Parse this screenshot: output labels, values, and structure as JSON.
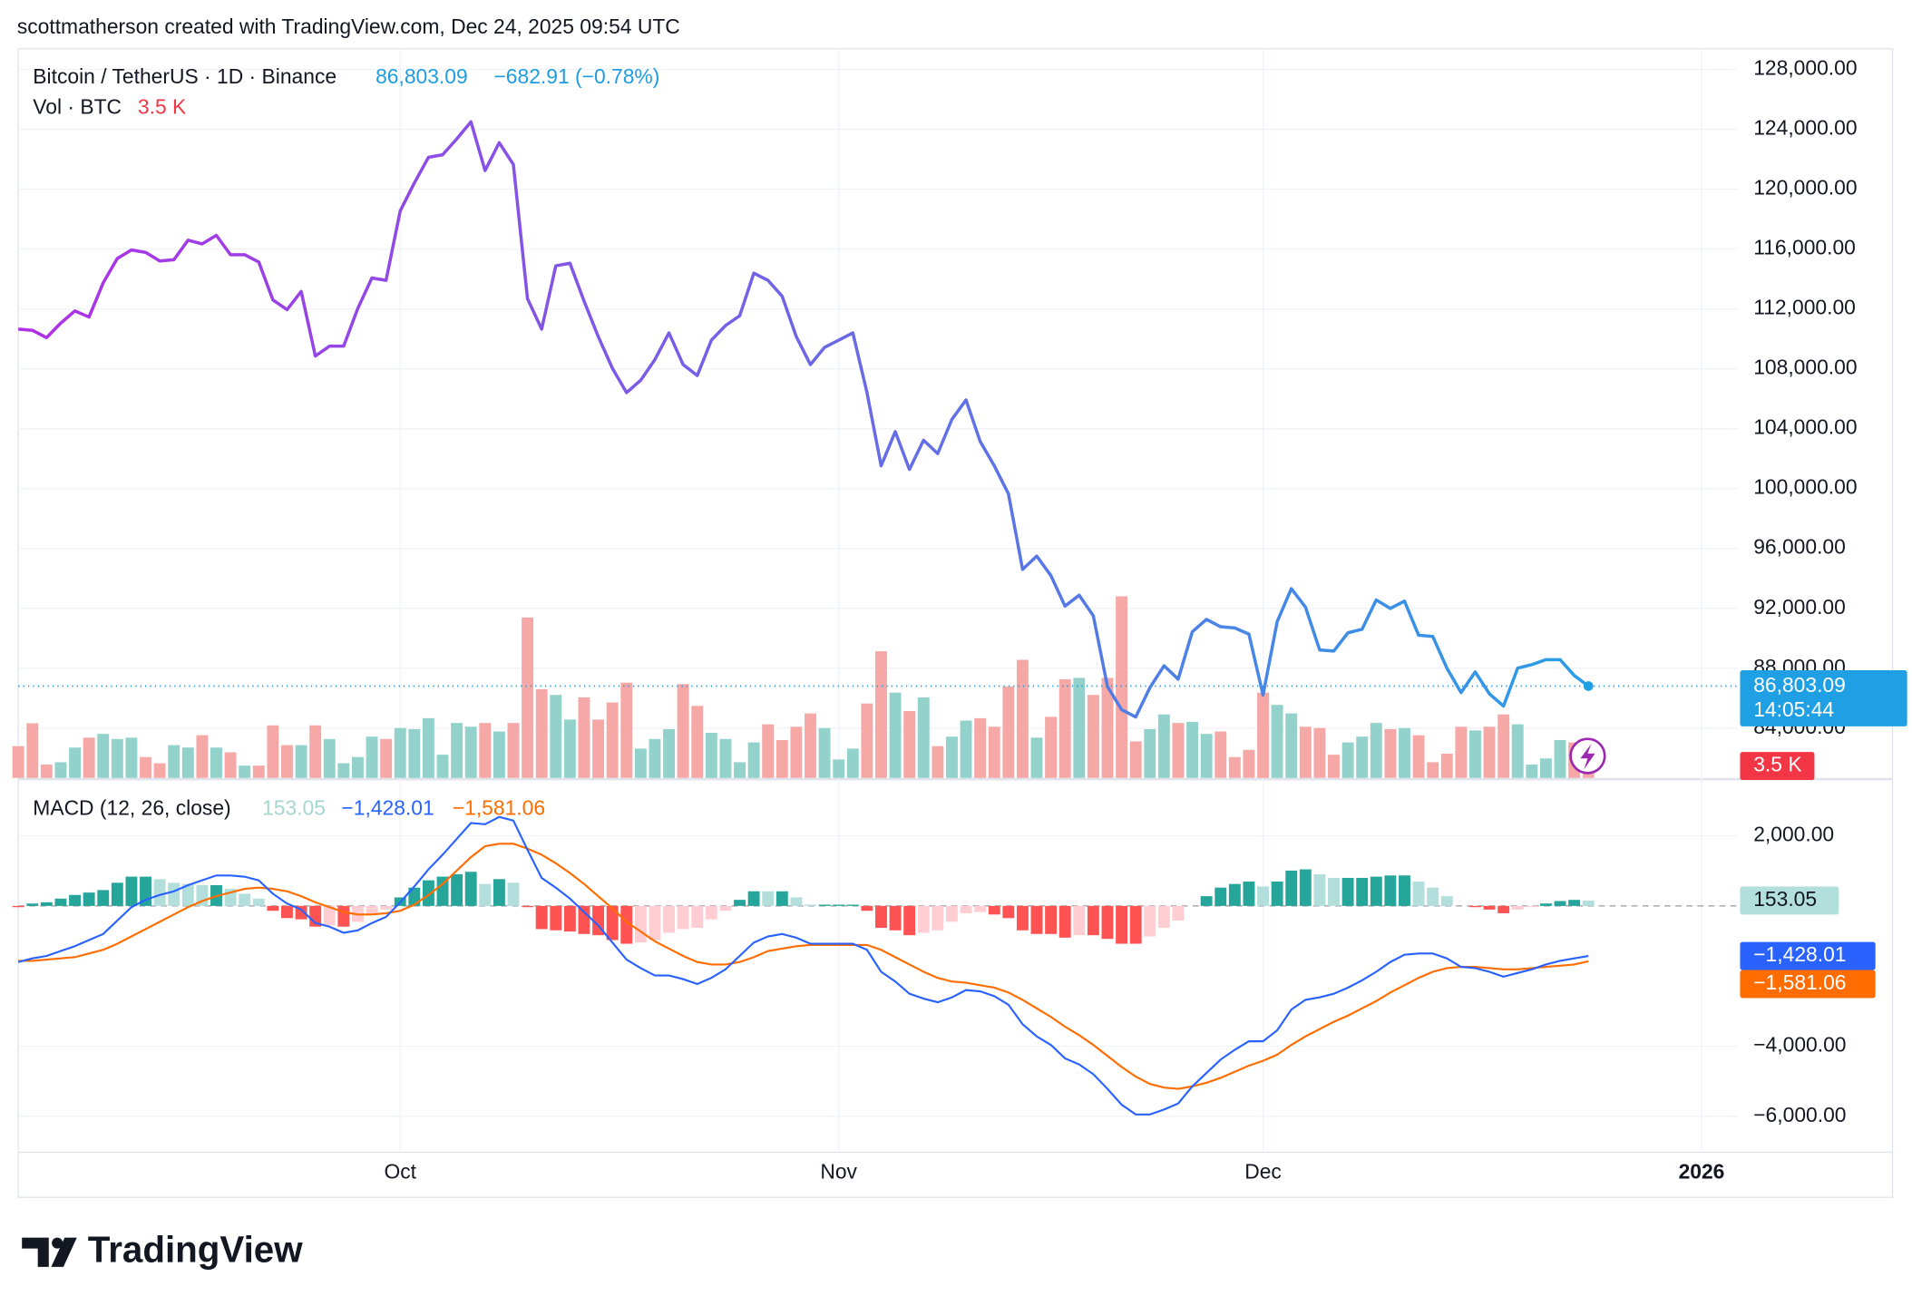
{
  "header": {
    "attribution": "scottmatherson created with TradingView.com, Dec 24, 2025 09:54 UTC",
    "logo": "TradingView"
  },
  "chart_data": [
    {
      "type": "bar",
      "title": "Vol · BTC",
      "current_label": "3.5 K",
      "up_color": "#92d2cb",
      "down_color": "#f5a8a6",
      "ylim": [
        0,
        213.6
      ],
      "values": [
        9.3,
        16,
        3.9,
        4.6,
        8.9,
        11.8,
        12.9,
        11.4,
        11.8,
        6.1,
        4.3,
        9.6,
        8.9,
        12.5,
        8.9,
        7.5,
        3.6,
        3.6,
        15.4,
        9.6,
        9.6,
        15.4,
        11.4,
        4.3,
        6.1,
        12.1,
        11.4,
        14.6,
        14.3,
        17.5,
        6.8,
        16.1,
        15,
        16.1,
        13.6,
        16.1,
        47,
        26,
        24.3,
        17.1,
        23.6,
        17.1,
        22.1,
        27.9,
        8.6,
        11.4,
        14.3,
        27.5,
        21.1,
        13.2,
        11.4,
        4.6,
        10.4,
        15.7,
        11.1,
        15,
        18.9,
        14.6,
        5.4,
        8.6,
        21.8,
        37.1,
        25,
        19.6,
        23.6,
        9.3,
        12.1,
        16.8,
        17.5,
        15,
        26.8,
        34.6,
        11.8,
        17.9,
        28.9,
        29.3,
        24.3,
        29.3,
        53.2,
        10.7,
        14.3,
        18.6,
        16.1,
        16.4,
        12.9,
        13.6,
        6.1,
        8.2,
        25,
        21.4,
        18.9,
        15,
        14.6,
        6.8,
        10.4,
        12.1,
        16.1,
        14.3,
        14.6,
        12.5,
        4.6,
        7.1,
        15,
        13.9,
        15,
        18.6,
        15.7,
        3.9,
        5.7,
        11.1,
        10.4,
        3.5
      ]
    },
    {
      "type": "line",
      "title": "Bitcoin / TetherUS · 1D · Binance",
      "last_label": "86,803.09",
      "change_label": "−682.91 (−0.78%)",
      "countdown": "14:05:44",
      "line_colors": [
        "#b02fe6",
        "#2a9de6"
      ],
      "badge_color": "#1f9fe4",
      "grid": true,
      "xlim": [
        0,
        121.55
      ],
      "xticks": [
        {
          "value": 27,
          "label": "Oct"
        },
        {
          "value": 58,
          "label": "Nov"
        },
        {
          "value": 88,
          "label": "Dec"
        },
        {
          "value": 119,
          "label": "2026"
        }
      ],
      "ylim": [
        80670,
        129380
      ],
      "yticks": [
        {
          "value": 128000,
          "label": "128,000.00"
        },
        {
          "value": 124000,
          "label": "124,000.00"
        },
        {
          "value": 120000,
          "label": "120,000.00"
        },
        {
          "value": 116000,
          "label": "116,000.00"
        },
        {
          "value": 112000,
          "label": "112,000.00"
        },
        {
          "value": 108000,
          "label": "108,000.00"
        },
        {
          "value": 104000,
          "label": "104,000.00"
        },
        {
          "value": 100000,
          "label": "100,000.00"
        },
        {
          "value": 96000,
          "label": "96,000.00"
        },
        {
          "value": 92000,
          "label": "92,000.00"
        },
        {
          "value": 88000,
          "label": "88,000.00"
        },
        {
          "value": 84000,
          "label": "84,000.00"
        }
      ],
      "values": [
        110650,
        110570,
        110080,
        111050,
        111870,
        111460,
        113740,
        115370,
        115940,
        115780,
        115210,
        115290,
        116590,
        116350,
        116920,
        115620,
        115620,
        115130,
        112600,
        111950,
        113170,
        108850,
        109510,
        109510,
        112030,
        114070,
        113910,
        118550,
        120420,
        122130,
        122300,
        123360,
        124500,
        121240,
        123110,
        121650,
        112680,
        110650,
        114880,
        115050,
        112520,
        110160,
        108040,
        106410,
        107230,
        108610,
        110400,
        108280,
        107550,
        109910,
        110890,
        111540,
        114390,
        113910,
        112850,
        110160,
        108280,
        109430,
        109910,
        110400,
        106410,
        101520,
        103800,
        101280,
        103230,
        102340,
        104620,
        105920,
        103150,
        101520,
        99650,
        94600,
        95490,
        94190,
        92150,
        92880,
        91500,
        86780,
        85230,
        84740,
        86700,
        88160,
        87270,
        90440,
        91260,
        90770,
        90690,
        90280,
        86210,
        91110,
        93310,
        92080,
        89220,
        89140,
        90360,
        90600,
        92560,
        91990,
        92480,
        90200,
        90120,
        88000,
        86370,
        87750,
        86290,
        85470,
        88000,
        88240,
        88570,
        88570,
        87510,
        86803.09
      ]
    },
    {
      "type": "macd",
      "title": "MACD (12, 26, close)",
      "grid": true,
      "ylim": [
        -7026,
        3582
      ],
      "yticks": [
        {
          "value": 2000,
          "label": "2,000.00"
        },
        {
          "value": -4000,
          "label": "−4,000.00"
        },
        {
          "value": -6000,
          "label": "−6,000.00"
        }
      ],
      "histogram": {
        "label": "153.05",
        "colors": {
          "pos_up": "#26a69a",
          "pos_down": "#b2dfdb",
          "neg_down": "#ff5252",
          "neg_up": "#ffcdd2"
        },
        "values": [
          -35,
          69,
          104,
          209,
          313,
          382,
          452,
          661,
          835,
          835,
          765,
          660,
          626,
          591,
          592,
          487,
          348,
          208,
          -139,
          -347,
          -382,
          -591,
          -556,
          -591,
          -453,
          -244,
          -104,
          243,
          521,
          730,
          835,
          904,
          974,
          626,
          765,
          661,
          -35,
          -661,
          -695,
          -730,
          -800,
          -835,
          -973,
          -1078,
          -1044,
          -973,
          -765,
          -661,
          -626,
          -383,
          -140,
          174,
          418,
          417,
          417,
          244,
          35,
          35,
          35,
          35,
          -139,
          -626,
          -696,
          -835,
          -765,
          -696,
          -452,
          -209,
          -174,
          -244,
          -348,
          -696,
          -799,
          -800,
          -905,
          -834,
          -835,
          -939,
          -1078,
          -1078,
          -869,
          -626,
          -417,
          0,
          278,
          522,
          626,
          695,
          556,
          695,
          1008,
          1043,
          904,
          800,
          800,
          800,
          835,
          869,
          870,
          696,
          522,
          278,
          0,
          -35,
          -104,
          -208,
          -104,
          -35,
          70,
          139,
          173,
          153.05
        ]
      },
      "macd": {
        "label": "−1,428.01",
        "color": "#2962ff",
        "values": [
          -1600,
          -1496,
          -1426,
          -1287,
          -1148,
          -974,
          -800,
          -417,
          -35,
          174,
          313,
          417,
          591,
          730,
          870,
          870,
          835,
          730,
          348,
          70,
          -104,
          -487,
          -591,
          -765,
          -696,
          -487,
          -313,
          104,
          556,
          1043,
          1461,
          1913,
          2365,
          2330,
          2539,
          2435,
          1600,
          800,
          522,
          209,
          -174,
          -557,
          -1043,
          -1530,
          -1774,
          -1982,
          -1982,
          -2087,
          -2226,
          -2052,
          -1809,
          -1426,
          -1043,
          -870,
          -800,
          -904,
          -1078,
          -1078,
          -1078,
          -1078,
          -1252,
          -1878,
          -2157,
          -2504,
          -2643,
          -2748,
          -2609,
          -2400,
          -2435,
          -2574,
          -2817,
          -3374,
          -3721,
          -3965,
          -4348,
          -4521,
          -4800,
          -5217,
          -5669,
          -5947,
          -5947,
          -5808,
          -5634,
          -5147,
          -4765,
          -4382,
          -4104,
          -3861,
          -3861,
          -3548,
          -2957,
          -2678,
          -2609,
          -2504,
          -2330,
          -2122,
          -1878,
          -1600,
          -1391,
          -1356,
          -1356,
          -1496,
          -1739,
          -1774,
          -1878,
          -2017,
          -1913,
          -1809,
          -1669,
          -1565,
          -1496,
          -1428.01
        ]
      },
      "signal": {
        "label": "−1,581.06",
        "color": "#ff6d00",
        "values": [
          -1565,
          -1565,
          -1530,
          -1496,
          -1461,
          -1356,
          -1252,
          -1078,
          -870,
          -661,
          -452,
          -243,
          -35,
          139,
          278,
          383,
          487,
          522,
          487,
          417,
          278,
          104,
          -35,
          -174,
          -243,
          -243,
          -209,
          -139,
          35,
          313,
          626,
          1009,
          1391,
          1704,
          1774,
          1774,
          1635,
          1461,
          1217,
          939,
          626,
          278,
          -70,
          -452,
          -730,
          -1009,
          -1217,
          -1426,
          -1600,
          -1669,
          -1669,
          -1600,
          -1461,
          -1287,
          -1217,
          -1148,
          -1113,
          -1113,
          -1113,
          -1113,
          -1113,
          -1252,
          -1461,
          -1669,
          -1878,
          -2052,
          -2157,
          -2191,
          -2261,
          -2330,
          -2469,
          -2678,
          -2922,
          -3165,
          -3443,
          -3687,
          -3965,
          -4278,
          -4591,
          -4869,
          -5078,
          -5182,
          -5217,
          -5147,
          -5043,
          -4904,
          -4730,
          -4556,
          -4417,
          -4243,
          -3965,
          -3721,
          -3513,
          -3304,
          -3130,
          -2922,
          -2713,
          -2469,
          -2261,
          -2052,
          -1878,
          -1774,
          -1739,
          -1739,
          -1774,
          -1809,
          -1809,
          -1774,
          -1739,
          -1704,
          -1669,
          -1581.06
        ]
      }
    }
  ]
}
